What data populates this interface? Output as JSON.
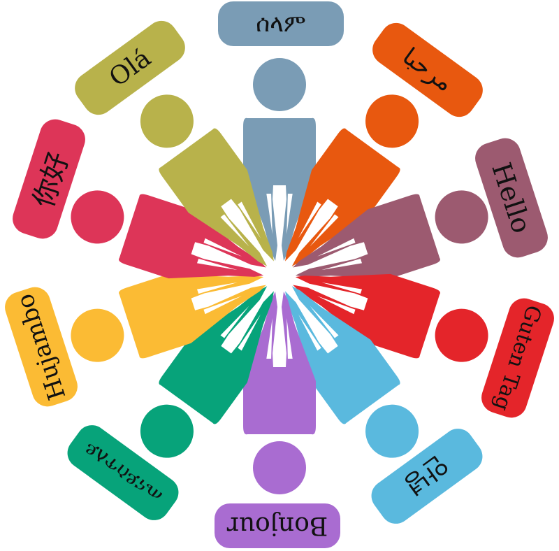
{
  "greetings": [
    {
      "id": "amharic",
      "text": "ሰላም",
      "color": "#7a9cb5"
    },
    {
      "id": "arabic",
      "text": "مرحبا",
      "color": "#e8580f"
    },
    {
      "id": "english",
      "text": "Hello",
      "color": "#9c5a70"
    },
    {
      "id": "german",
      "text": "Guten Tag",
      "color": "#e4252a"
    },
    {
      "id": "korean",
      "text": "안녕",
      "color": "#5ab9de"
    },
    {
      "id": "french",
      "text": "Bonjour",
      "color": "#a96cd1"
    },
    {
      "id": "tigrinya",
      "text": "ጤናይስጥለይ",
      "color": "#07a37a"
    },
    {
      "id": "swahili",
      "text": "Hujambo",
      "color": "#fbbb34"
    },
    {
      "id": "chinese",
      "text": "你好",
      "color": "#dd3558"
    },
    {
      "id": "portuguese",
      "text": "Olá",
      "color": "#b8b24b"
    }
  ]
}
